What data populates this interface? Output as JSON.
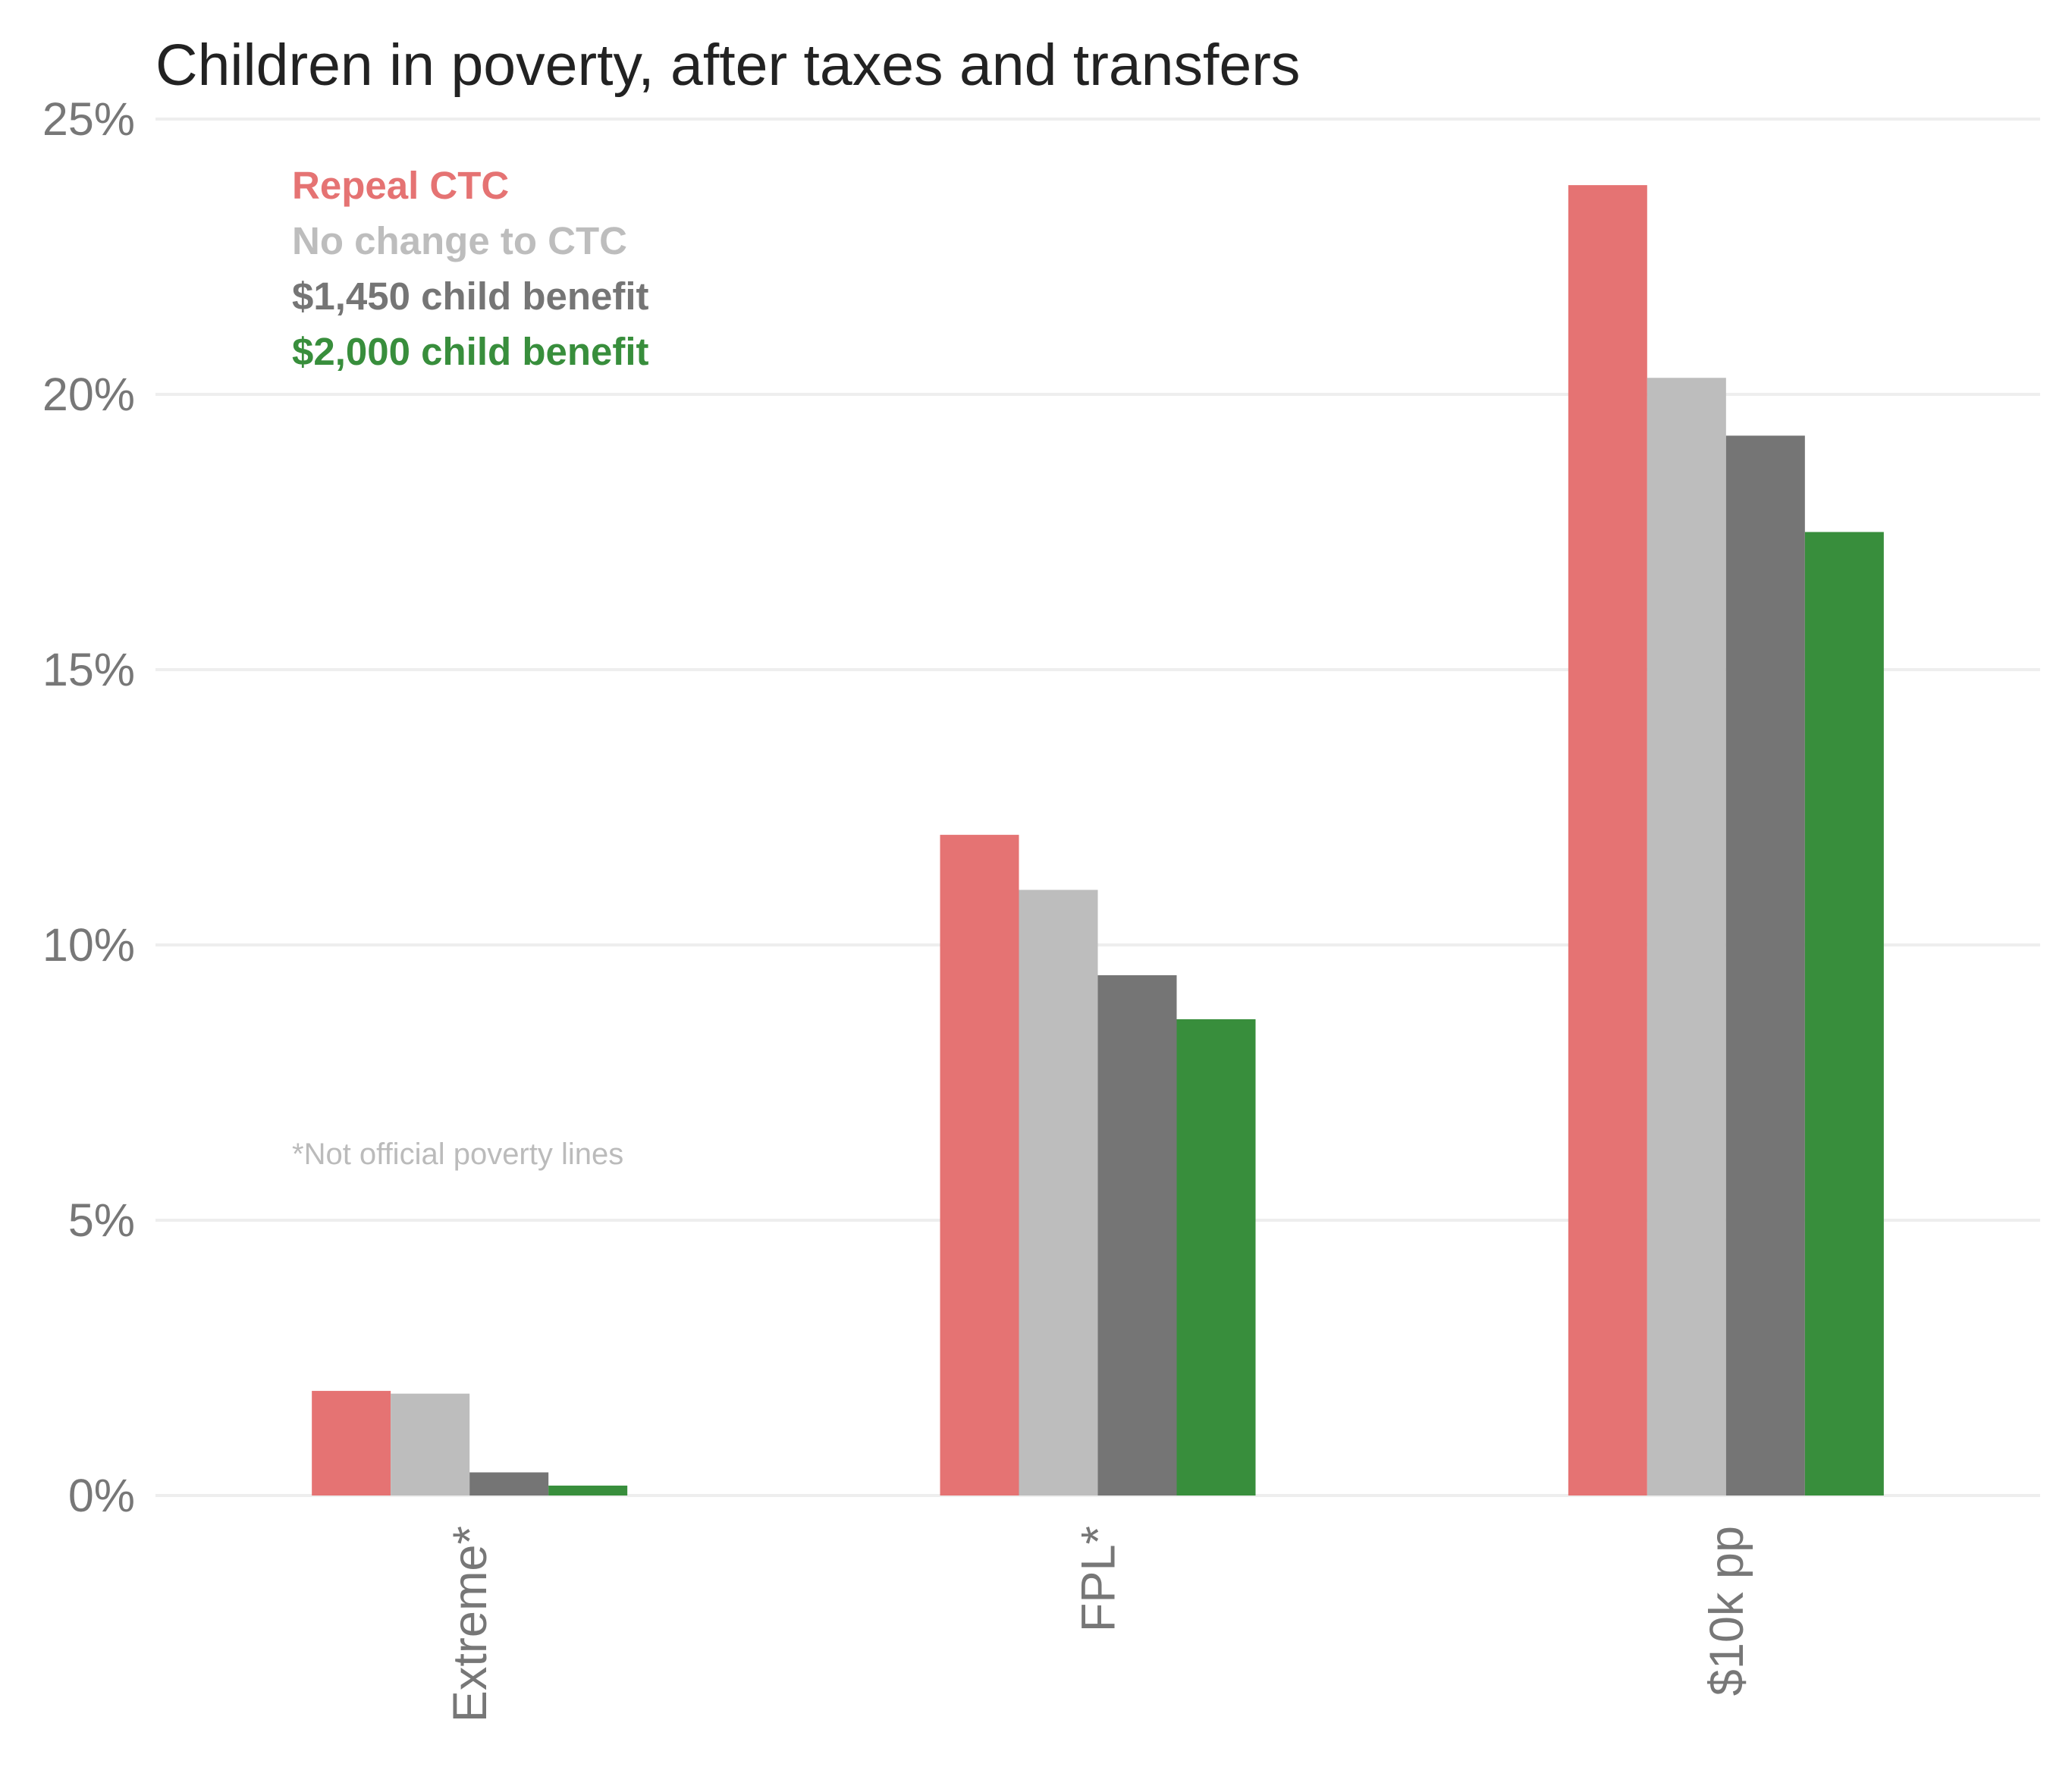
{
  "chart_data": {
    "type": "bar",
    "title": "Children in poverty, after taxes and transfers",
    "xlabel": "",
    "ylabel": "",
    "ylim": [
      0,
      25
    ],
    "ytick_values": [
      0,
      5,
      10,
      15,
      20,
      25
    ],
    "ytick_labels": [
      "0%",
      "5%",
      "10%",
      "15%",
      "20%",
      "25%"
    ],
    "categories": [
      "Extreme*",
      "FPL*",
      "$10k pp"
    ],
    "series": [
      {
        "name": "Repeal CTC",
        "color": "#e57373",
        "values": [
          1.9,
          12.0,
          23.8
        ]
      },
      {
        "name": "No change to CTC",
        "color": "#bdbdbd",
        "values": [
          1.85,
          11.0,
          20.3
        ]
      },
      {
        "name": "$1,450 child benefit",
        "color": "#757575",
        "values": [
          0.42,
          9.45,
          19.25
        ]
      },
      {
        "name": "$2,000 child benefit",
        "color": "#388e3c",
        "values": [
          0.18,
          8.65,
          17.5
        ]
      }
    ],
    "grid": true,
    "legend_position": "top-left",
    "annotation": "*Not official poverty lines"
  }
}
